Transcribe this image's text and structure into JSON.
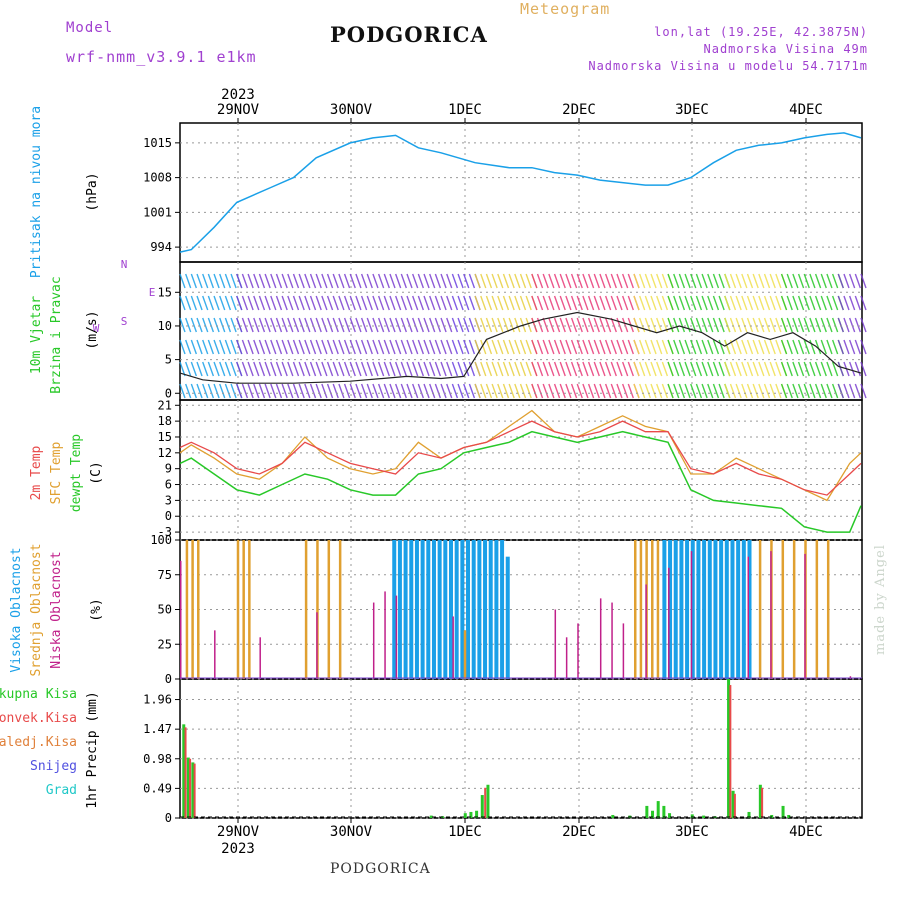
{
  "header": {
    "model_label": "Model",
    "model_name": "wrf-nmm_v3.9.1 e1km",
    "title": "PODGORICA",
    "meteogram": "Meteogram",
    "lonlat": "lon,lat (19.25E, 42.3875N)",
    "elevation": "Nadmorska Visina 49m",
    "model_elevation": "Nadmorska Visina u modelu 54.7171m",
    "footer": "PODGORICA",
    "watermark": "made by Angel"
  },
  "colors": {
    "pressure": "#1aa0e8",
    "temp2m": "#e84a4a",
    "sfc": "#e0a030",
    "dewpt": "#28c828",
    "high_cloud": "#1aa0e8",
    "mid_cloud": "#e0a030",
    "low_cloud": "#c0208a",
    "purple_text": "#a040d0",
    "orange_text": "#e0b060"
  },
  "chart_data": [
    {
      "type": "line",
      "panel": "pressure",
      "year": "2023",
      "top_ticks": [
        "29NOV",
        "30NOV",
        "1DEC",
        "2DEC",
        "3DEC",
        "4DEC"
      ],
      "ylabel": [
        "Pritisak na nivou mora",
        "(hPa)"
      ],
      "yticks": [
        994,
        1001,
        1008,
        1015
      ],
      "ylim": [
        991,
        1019
      ],
      "x_days": [
        0,
        0.1,
        0.3,
        0.5,
        0.8,
        1.0,
        1.2,
        1.5,
        1.7,
        1.9,
        2.1,
        2.3,
        2.6,
        2.9,
        3.1,
        3.3,
        3.5,
        3.7,
        3.9,
        4.1,
        4.3,
        4.5,
        4.7,
        4.9,
        5.1,
        5.3,
        5.5,
        5.7,
        5.85,
        6.0
      ],
      "series": [
        {
          "values": [
            993,
            993.5,
            998,
            1003,
            1006,
            1008,
            1012,
            1015,
            1016,
            1016.5,
            1014,
            1013,
            1011,
            1010,
            1010,
            1009,
            1008.5,
            1007.5,
            1007,
            1006.5,
            1006.5,
            1008,
            1011,
            1013.5,
            1014.5,
            1015,
            1016,
            1016.7,
            1017,
            1016
          ]
        }
      ]
    },
    {
      "type": "line",
      "panel": "wind",
      "ylabel": [
        "10m Vjetar",
        "Brzina i Pravac",
        "(m/s)"
      ],
      "compass": [
        "N",
        "E",
        "S",
        "W"
      ],
      "yticks": [
        0,
        5,
        10,
        15
      ],
      "ylim": [
        -1,
        19.5
      ],
      "x_days": [
        0,
        0.2,
        0.5,
        1.0,
        1.5,
        2.0,
        2.3,
        2.5,
        2.7,
        3.0,
        3.2,
        3.5,
        3.8,
        4.0,
        4.2,
        4.4,
        4.6,
        4.8,
        5.0,
        5.2,
        5.4,
        5.6,
        5.8,
        6.0
      ],
      "series": [
        {
          "values": [
            3,
            2,
            1.5,
            1.5,
            1.8,
            2.5,
            2.2,
            2.5,
            8,
            10,
            11,
            12,
            11,
            10,
            9,
            10,
            9,
            7,
            9,
            8,
            9,
            7,
            4,
            3
          ]
        }
      ]
    },
    {
      "type": "line",
      "panel": "temperature",
      "ylabel": [
        "2m Temp",
        "SFC Temp",
        "dewpt Temp",
        "(C)"
      ],
      "yticks": [
        -3,
        0,
        3,
        6,
        9,
        12,
        15,
        18,
        21
      ],
      "ylim": [
        -4.5,
        22
      ],
      "x_days": [
        0,
        0.1,
        0.3,
        0.5,
        0.7,
        0.9,
        1.1,
        1.3,
        1.5,
        1.7,
        1.9,
        2.1,
        2.3,
        2.5,
        2.7,
        2.9,
        3.1,
        3.3,
        3.5,
        3.7,
        3.9,
        4.1,
        4.3,
        4.5,
        4.7,
        4.9,
        5.1,
        5.3,
        5.5,
        5.7,
        5.9,
        6.0
      ],
      "series": [
        {
          "values": [
            12,
            13.5,
            11,
            8,
            7,
            10,
            15,
            11,
            9,
            8,
            9,
            14,
            11,
            13,
            14,
            17,
            20,
            16,
            15,
            17,
            19,
            17,
            16,
            8,
            8,
            11,
            9,
            7,
            5,
            3,
            10,
            12
          ]
        },
        {
          "values": [
            13,
            14,
            12,
            9,
            8,
            10,
            14,
            12,
            10,
            9,
            8,
            12,
            11,
            13,
            14,
            16,
            18,
            16,
            15,
            16,
            18,
            16,
            16,
            9,
            8,
            10,
            8,
            7,
            5,
            4,
            8,
            10
          ]
        },
        {
          "values": [
            10,
            11,
            8,
            5,
            4,
            6,
            8,
            7,
            5,
            4,
            4,
            8,
            9,
            12,
            13,
            14,
            16,
            15,
            14,
            15,
            16,
            15,
            14,
            5,
            3,
            2.5,
            2,
            1.5,
            -2,
            -3,
            -3,
            2
          ]
        }
      ]
    },
    {
      "type": "bar",
      "panel": "clouds",
      "ylabel": [
        "Visoka Oblacnost",
        "Srednja Oblacnost",
        "Niska Oblacnost",
        "(%)"
      ],
      "yticks": [
        0,
        25,
        50,
        75,
        100
      ],
      "ylim": [
        0,
        100
      ],
      "series": [
        {
          "type": "bar",
          "bars": [
            [
              1.87,
              100
            ],
            [
              1.92,
              100
            ],
            [
              1.97,
              100
            ],
            [
              2.02,
              100
            ],
            [
              2.07,
              100
            ],
            [
              2.12,
              100
            ],
            [
              2.17,
              100
            ],
            [
              2.22,
              100
            ],
            [
              2.27,
              100
            ],
            [
              2.32,
              100
            ],
            [
              2.37,
              100
            ],
            [
              2.42,
              100
            ],
            [
              2.47,
              100
            ],
            [
              2.52,
              100
            ],
            [
              2.57,
              100
            ],
            [
              2.62,
              100
            ],
            [
              2.67,
              100
            ],
            [
              2.72,
              100
            ],
            [
              2.77,
              100
            ],
            [
              2.82,
              100
            ],
            [
              2.87,
              88
            ],
            [
              4.25,
              100
            ],
            [
              4.3,
              100
            ],
            [
              4.35,
              100
            ],
            [
              4.4,
              100
            ],
            [
              4.45,
              100
            ],
            [
              4.5,
              100
            ],
            [
              4.55,
              100
            ],
            [
              4.6,
              100
            ],
            [
              4.65,
              100
            ],
            [
              4.7,
              100
            ],
            [
              4.75,
              100
            ],
            [
              4.8,
              100
            ],
            [
              4.85,
              100
            ],
            [
              4.9,
              100
            ],
            [
              4.95,
              100
            ],
            [
              5.0,
              100
            ]
          ]
        },
        {
          "type": "bar",
          "bars": [
            [
              0.05,
              100
            ],
            [
              0.1,
              100
            ],
            [
              0.15,
              100
            ],
            [
              0.5,
              100
            ],
            [
              0.55,
              100
            ],
            [
              0.6,
              100
            ],
            [
              1.1,
              100
            ],
            [
              1.2,
              100
            ],
            [
              1.3,
              100
            ],
            [
              1.4,
              100
            ],
            [
              2.5,
              35
            ],
            [
              4.0,
              100
            ],
            [
              4.05,
              100
            ],
            [
              4.1,
              100
            ],
            [
              4.15,
              100
            ],
            [
              4.2,
              100
            ],
            [
              5.1,
              100
            ],
            [
              5.2,
              100
            ],
            [
              5.3,
              100
            ],
            [
              5.4,
              100
            ],
            [
              5.5,
              100
            ],
            [
              5.6,
              100
            ],
            [
              5.7,
              100
            ]
          ]
        },
        {
          "type": "bar",
          "bars": [
            [
              0.0,
              85
            ],
            [
              0.3,
              35
            ],
            [
              0.7,
              30
            ],
            [
              1.2,
              48
            ],
            [
              1.7,
              55
            ],
            [
              1.8,
              63
            ],
            [
              1.9,
              60
            ],
            [
              2.4,
              45
            ],
            [
              3.3,
              50
            ],
            [
              3.4,
              30
            ],
            [
              3.5,
              40
            ],
            [
              3.7,
              58
            ],
            [
              3.8,
              55
            ],
            [
              3.9,
              40
            ],
            [
              4.1,
              68
            ],
            [
              4.3,
              80
            ],
            [
              4.5,
              92
            ],
            [
              5.0,
              88
            ],
            [
              5.2,
              92
            ],
            [
              5.5,
              90
            ],
            [
              5.9,
              2
            ]
          ]
        }
      ]
    },
    {
      "type": "bar",
      "panel": "precip",
      "ylabel": [
        "1hr Precip (mm)"
      ],
      "legend": [
        "Ukupna Kisa",
        "Konvek.Kisa",
        "Zaledj.Kisa",
        "Snijeg",
        "Grad"
      ],
      "legend_colors": [
        "#28c828",
        "#e84a4a",
        "#e0803a",
        "#5050e0",
        "#20c8c8"
      ],
      "yticks": [
        0,
        0.49,
        0.98,
        1.47,
        1.96
      ],
      "ylim": [
        0,
        2.3
      ],
      "bottom_ticks": [
        "29NOV",
        "30NOV",
        "1DEC",
        "2DEC",
        "3DEC",
        "4DEC"
      ],
      "bottom_year": "2023",
      "series": [
        {
          "type": "bar",
          "bars": [
            [
              0.02,
              1.55
            ],
            [
              0.06,
              1.0
            ],
            [
              0.1,
              0.92
            ],
            [
              2.2,
              0.04
            ],
            [
              2.3,
              0.03
            ],
            [
              2.5,
              0.08
            ],
            [
              2.55,
              0.1
            ],
            [
              2.6,
              0.12
            ],
            [
              2.65,
              0.38
            ],
            [
              2.7,
              0.55
            ],
            [
              3.8,
              0.05
            ],
            [
              3.95,
              0.04
            ],
            [
              4.1,
              0.2
            ],
            [
              4.15,
              0.12
            ],
            [
              4.2,
              0.28
            ],
            [
              4.25,
              0.2
            ],
            [
              4.3,
              0.08
            ],
            [
              4.5,
              0.06
            ],
            [
              4.6,
              0.04
            ],
            [
              4.7,
              0.03
            ],
            [
              4.82,
              2.3
            ],
            [
              4.86,
              0.45
            ],
            [
              5.0,
              0.1
            ],
            [
              5.1,
              0.55
            ],
            [
              5.2,
              0.05
            ],
            [
              5.3,
              0.2
            ],
            [
              5.35,
              0.05
            ]
          ]
        },
        {
          "type": "bar",
          "bars": [
            [
              0.04,
              1.5
            ],
            [
              0.08,
              0.98
            ],
            [
              0.12,
              0.9
            ],
            [
              2.68,
              0.5
            ],
            [
              4.84,
              2.2
            ],
            [
              4.88,
              0.4
            ],
            [
              5.12,
              0.5
            ]
          ]
        }
      ]
    }
  ]
}
